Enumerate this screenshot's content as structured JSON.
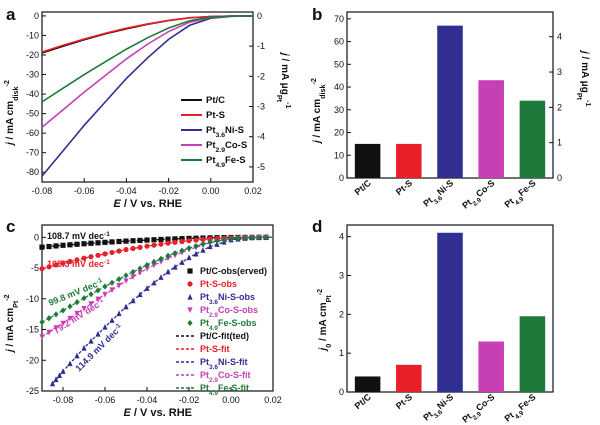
{
  "colors": {
    "PtC": "#111111",
    "PtS": "#e8202a",
    "PtNiS": "#2f2f91",
    "PtCoS": "#c63fb4",
    "PtFeS": "#1e7a3a"
  },
  "chart_data": [
    {
      "panel": "a",
      "type": "line",
      "xlabel": "E / V vs. RHE",
      "ylabel_left": "j / mA cm_disk^-2",
      "ylabel_right": "j / mA μg_Pt^-1",
      "xlim": [
        -0.08,
        0.02
      ],
      "ylim": [
        -85,
        2
      ],
      "ylim_right": [
        -5.5,
        0.13
      ],
      "xticks": [
        "-0.08",
        "-0.06",
        "-0.04",
        "-0.02",
        "0.00",
        "0.02"
      ],
      "yticks": [
        "0",
        "-10",
        "-20",
        "-30",
        "-40",
        "-50",
        "-60",
        "-70",
        "-80"
      ],
      "yticks_right": [
        "0",
        "-1",
        "-2",
        "-3",
        "-4",
        "-5"
      ],
      "legend": [
        "Pt/C",
        "Pt-S",
        "Pt3.6Ni-S",
        "Pt2.9Co-S",
        "Pt4.9Fe-S"
      ],
      "series": [
        {
          "name": "Pt/C",
          "color": "#111111",
          "x": [
            -0.08,
            -0.07,
            -0.06,
            -0.05,
            -0.04,
            -0.03,
            -0.02,
            -0.01,
            0.0,
            0.01,
            0.02
          ],
          "y": [
            -19,
            -15.5,
            -12.2,
            -9.2,
            -6.6,
            -4.3,
            -2.4,
            -1.0,
            -0.3,
            -0.05,
            0
          ]
        },
        {
          "name": "Pt-S",
          "color": "#e8202a",
          "x": [
            -0.08,
            -0.07,
            -0.06,
            -0.05,
            -0.04,
            -0.03,
            -0.02,
            -0.01,
            0.0,
            0.01,
            0.02
          ],
          "y": [
            -18.5,
            -15,
            -11.8,
            -8.9,
            -6.3,
            -4.1,
            -2.3,
            -0.9,
            -0.3,
            -0.05,
            0
          ]
        },
        {
          "name": "Pt3.6Ni-S",
          "color": "#2f2f91",
          "x": [
            -0.08,
            -0.07,
            -0.06,
            -0.05,
            -0.04,
            -0.03,
            -0.02,
            -0.01,
            0.0,
            0.01,
            0.02
          ],
          "y": [
            -82,
            -69,
            -56,
            -44,
            -32,
            -21.5,
            -12,
            -4.8,
            -1.2,
            -0.2,
            0
          ]
        },
        {
          "name": "Pt2.9Co-S",
          "color": "#c63fb4",
          "x": [
            -0.08,
            -0.07,
            -0.06,
            -0.05,
            -0.04,
            -0.03,
            -0.02,
            -0.01,
            0.0,
            0.01,
            0.02
          ],
          "y": [
            -57,
            -48,
            -39,
            -30.5,
            -22,
            -14.5,
            -8,
            -3.2,
            -0.8,
            -0.1,
            0
          ]
        },
        {
          "name": "Pt4.9Fe-S",
          "color": "#1e7a3a",
          "x": [
            -0.08,
            -0.07,
            -0.06,
            -0.05,
            -0.04,
            -0.03,
            -0.02,
            -0.01,
            0.0,
            0.01,
            0.02
          ],
          "y": [
            -44,
            -37,
            -30,
            -23.5,
            -17,
            -11.2,
            -6.2,
            -2.5,
            -0.6,
            -0.1,
            0
          ]
        }
      ]
    },
    {
      "panel": "b",
      "type": "bar",
      "ylabel_left": "j / mA cm_disk^-2",
      "ylabel_right": "j / mA μg_Pt^-1",
      "categories": [
        "Pt/C",
        "Pt-S",
        "Pt3.6Ni-S",
        "Pt2.9Co-S",
        "Pt4.9Fe-S"
      ],
      "values": [
        15,
        15,
        67,
        43,
        34
      ],
      "colors": [
        "#111111",
        "#e8202a",
        "#2f2f91",
        "#c63fb4",
        "#1e7a3a"
      ],
      "ylim": [
        0,
        73
      ],
      "ylim_right": [
        0,
        4.7
      ],
      "yticks": [
        "0",
        "10",
        "20",
        "30",
        "40",
        "50",
        "60",
        "70"
      ],
      "yticks_right": [
        "0",
        "1",
        "2",
        "3",
        "4"
      ]
    },
    {
      "panel": "c",
      "type": "scatter",
      "xlabel": "E / V vs. RHE",
      "ylabel": "j / mA cm_Pt^-2",
      "xlim": [
        -0.09,
        0.02
      ],
      "ylim": [
        -25,
        2
      ],
      "xticks": [
        "-0.08",
        "-0.06",
        "-0.04",
        "-0.02",
        "0.00",
        "0.02"
      ],
      "yticks": [
        "0",
        "-5",
        "-10",
        "-15",
        "-20",
        "-25"
      ],
      "annotations": [
        "108.7 mV dec-1",
        "105.3 mV dec-1",
        "99.8 mV dec-1",
        "79.2 mV dec-1",
        "114.9 mV dec-1"
      ],
      "legend": [
        "Pt/C-obs(erved)",
        "Pt-S-obs",
        "Pt3.6Ni-S-obs",
        "Pt2.9Co-S-obs",
        "Pt4.9Fe-S-obs",
        "Pt/C-fit(ted)",
        "Pt-S-fit",
        "Pt3.6Ni-S-fit",
        "Pt2.9Co-S-fit",
        "Pt4.9Fe-S-fit"
      ],
      "series": [
        {
          "name": "Pt/C",
          "color": "#111111",
          "marker": "square",
          "x": [
            -0.09,
            -0.08,
            -0.07,
            -0.06,
            -0.05,
            -0.04,
            -0.03,
            -0.02,
            -0.01,
            0.0,
            0.01,
            0.02
          ],
          "y": [
            -1.6,
            -1.3,
            -1.05,
            -0.82,
            -0.62,
            -0.45,
            -0.3,
            -0.18,
            -0.09,
            -0.03,
            -0.01,
            0
          ]
        },
        {
          "name": "Pt-S",
          "color": "#e8202a",
          "marker": "circle",
          "x": [
            -0.09,
            -0.08,
            -0.07,
            -0.06,
            -0.05,
            -0.04,
            -0.03,
            -0.02,
            -0.01,
            0.0,
            0.01,
            0.02
          ],
          "y": [
            -5.1,
            -4.2,
            -3.4,
            -2.7,
            -2.0,
            -1.45,
            -0.95,
            -0.55,
            -0.25,
            -0.08,
            -0.02,
            0
          ]
        },
        {
          "name": "Pt3.6Ni-S",
          "color": "#2f2f91",
          "marker": "triangle-up",
          "x": [
            -0.085,
            -0.08,
            -0.07,
            -0.06,
            -0.05,
            -0.04,
            -0.03,
            -0.02,
            -0.01,
            0.0,
            0.01,
            0.02
          ],
          "y": [
            -23.8,
            -21.8,
            -18,
            -14.6,
            -11.3,
            -8.3,
            -5.6,
            -3.3,
            -1.5,
            -0.4,
            -0.05,
            0
          ]
        },
        {
          "name": "Pt2.9Co-S",
          "color": "#c63fb4",
          "marker": "triangle-down",
          "x": [
            -0.09,
            -0.08,
            -0.07,
            -0.06,
            -0.05,
            -0.04,
            -0.03,
            -0.02,
            -0.01,
            0.0,
            0.01,
            0.02
          ],
          "y": [
            -16.2,
            -14.0,
            -11.6,
            -9.3,
            -7.1,
            -5.1,
            -3.4,
            -2.0,
            -0.9,
            -0.25,
            -0.03,
            0
          ]
        },
        {
          "name": "Pt4.9Fe-S",
          "color": "#1e7a3a",
          "marker": "diamond",
          "x": [
            -0.09,
            -0.08,
            -0.07,
            -0.06,
            -0.05,
            -0.04,
            -0.03,
            -0.02,
            -0.01,
            0.0,
            0.01,
            0.02
          ],
          "y": [
            -13.8,
            -11.9,
            -9.9,
            -8.0,
            -6.2,
            -4.5,
            -3.0,
            -1.75,
            -0.8,
            -0.22,
            -0.03,
            0
          ]
        }
      ]
    },
    {
      "panel": "d",
      "type": "bar",
      "ylabel": "j0 / mA cm_Pt^-2",
      "categories": [
        "Pt/C",
        "Pt-S",
        "Pt3.6Ni-S",
        "Pt2.9Co-S",
        "Pt4.9Fe-S"
      ],
      "values": [
        0.4,
        0.7,
        4.1,
        1.3,
        1.95
      ],
      "colors": [
        "#111111",
        "#e8202a",
        "#2f2f91",
        "#c63fb4",
        "#1e7a3a"
      ],
      "ylim": [
        0,
        4.3
      ],
      "yticks": [
        "0",
        "1",
        "2",
        "3",
        "4"
      ]
    }
  ],
  "labels": {
    "panel_a": "a",
    "panel_b": "b",
    "panel_c": "c",
    "panel_d": "d"
  }
}
